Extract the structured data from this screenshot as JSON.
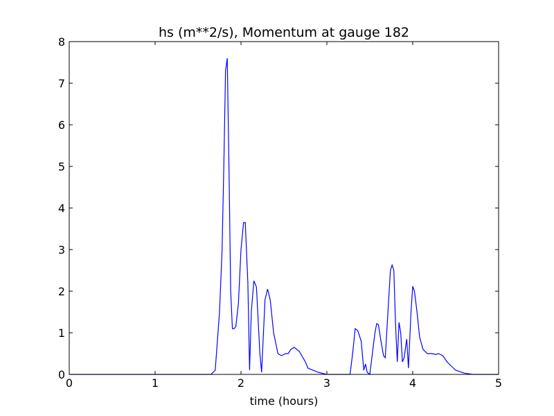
{
  "chart_data": {
    "type": "line",
    "title": "hs (m**2/s), Momentum at gauge 182",
    "x_label": "time (hours)",
    "x": [
      0,
      1.65,
      1.7,
      1.75,
      1.78,
      1.8,
      1.82,
      1.84,
      1.86,
      1.88,
      1.9,
      1.92,
      1.94,
      1.97,
      2.0,
      2.03,
      2.05,
      2.08,
      2.1,
      2.12,
      2.15,
      2.18,
      2.22,
      2.24,
      2.28,
      2.31,
      2.34,
      2.38,
      2.43,
      2.47,
      2.52,
      2.55,
      2.58,
      2.62,
      2.68,
      2.75,
      2.78,
      2.9,
      3.0,
      3.27,
      3.3,
      3.33,
      3.36,
      3.4,
      3.43,
      3.45,
      3.47,
      3.5,
      3.53,
      3.56,
      3.58,
      3.6,
      3.63,
      3.66,
      3.68,
      3.72,
      3.74,
      3.76,
      3.78,
      3.8,
      3.82,
      3.84,
      3.86,
      3.88,
      3.9,
      3.93,
      3.95,
      3.98,
      4.0,
      4.02,
      4.05,
      4.08,
      4.12,
      4.17,
      4.22,
      4.27,
      4.3,
      4.35,
      4.4,
      4.45,
      4.5,
      4.6,
      4.7,
      5
    ],
    "series": [
      {
        "color": "#0000ff",
        "values": [
          0,
          0,
          0.1,
          1.5,
          3,
          5,
          7.3,
          7.6,
          5,
          2,
          1.1,
          1.1,
          1.15,
          1.7,
          3.0,
          3.65,
          3.65,
          2.2,
          0.1,
          1.5,
          2.25,
          2.1,
          0.5,
          0.05,
          1.8,
          2.05,
          1.8,
          1.0,
          0.5,
          0.45,
          0.5,
          0.5,
          0.6,
          0.65,
          0.55,
          0.3,
          0.15,
          0.05,
          0,
          0,
          0.5,
          1.1,
          1.05,
          0.8,
          0.1,
          0.25,
          0.05,
          0,
          0.5,
          1.0,
          1.22,
          1.2,
          0.8,
          0.45,
          0.4,
          1.8,
          2.5,
          2.63,
          2.5,
          1.2,
          0.3,
          1.25,
          1.0,
          0.3,
          0.4,
          0.85,
          0.15,
          1.5,
          2.12,
          2.0,
          1.5,
          0.9,
          0.6,
          0.5,
          0.5,
          0.48,
          0.5,
          0.45,
          0.3,
          0.2,
          0.1,
          0.03,
          0,
          0
        ]
      }
    ],
    "xlim": [
      0,
      5
    ],
    "xticks": [
      0,
      1,
      2,
      3,
      4,
      5
    ],
    "ylim": [
      0,
      8
    ],
    "yticks": [
      0,
      1,
      2,
      3,
      4,
      5,
      6,
      7,
      8
    ]
  }
}
